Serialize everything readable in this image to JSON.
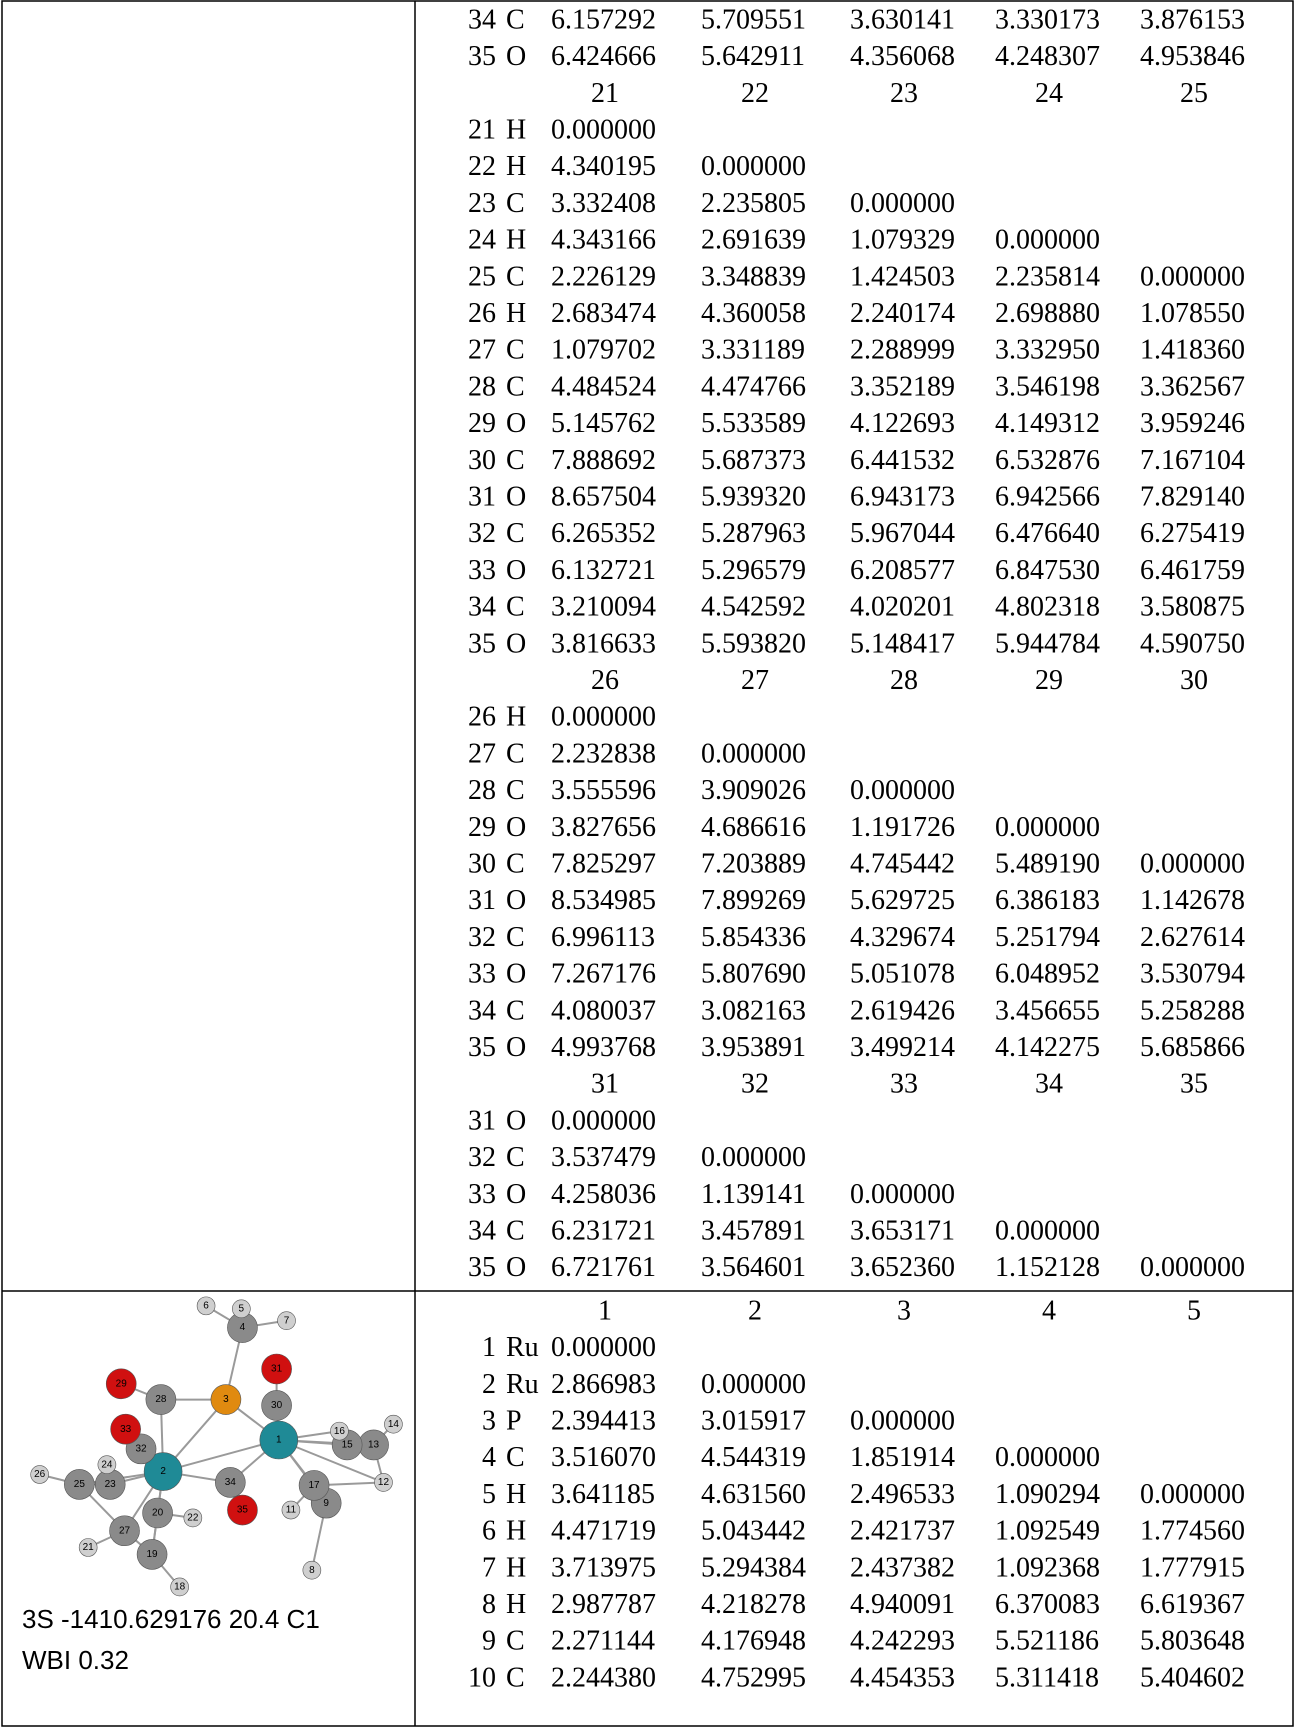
{
  "cells": [
    {
      "blocks": [
        {
          "rows": [
            [
              "34",
              "C",
              "6.157292",
              "5.709551",
              "3.630141",
              "3.330173",
              "3.876153"
            ],
            [
              "35",
              "O",
              "6.424666",
              "5.642911",
              "4.356068",
              "4.248307",
              "4.953846"
            ]
          ]
        },
        {
          "columns": [
            "21",
            "22",
            "23",
            "24",
            "25"
          ],
          "rows": [
            [
              "21",
              "H",
              "0.000000"
            ],
            [
              "22",
              "H",
              "4.340195",
              "0.000000"
            ],
            [
              "23",
              "C",
              "3.332408",
              "2.235805",
              "0.000000"
            ],
            [
              "24",
              "H",
              "4.343166",
              "2.691639",
              "1.079329",
              "0.000000"
            ],
            [
              "25",
              "C",
              "2.226129",
              "3.348839",
              "1.424503",
              "2.235814",
              "0.000000"
            ],
            [
              "26",
              "H",
              "2.683474",
              "4.360058",
              "2.240174",
              "2.698880",
              "1.078550"
            ],
            [
              "27",
              "C",
              "1.079702",
              "3.331189",
              "2.288999",
              "3.332950",
              "1.418360"
            ],
            [
              "28",
              "C",
              "4.484524",
              "4.474766",
              "3.352189",
              "3.546198",
              "3.362567"
            ],
            [
              "29",
              "O",
              "5.145762",
              "5.533589",
              "4.122693",
              "4.149312",
              "3.959246"
            ],
            [
              "30",
              "C",
              "7.888692",
              "5.687373",
              "6.441532",
              "6.532876",
              "7.167104"
            ],
            [
              "31",
              "O",
              "8.657504",
              "5.939320",
              "6.943173",
              "6.942566",
              "7.829140"
            ],
            [
              "32",
              "C",
              "6.265352",
              "5.287963",
              "5.967044",
              "6.476640",
              "6.275419"
            ],
            [
              "33",
              "O",
              "6.132721",
              "5.296579",
              "6.208577",
              "6.847530",
              "6.461759"
            ],
            [
              "34",
              "C",
              "3.210094",
              "4.542592",
              "4.020201",
              "4.802318",
              "3.580875"
            ],
            [
              "35",
              "O",
              "3.816633",
              "5.593820",
              "5.148417",
              "5.944784",
              "4.590750"
            ]
          ]
        },
        {
          "columns": [
            "26",
            "27",
            "28",
            "29",
            "30"
          ],
          "rows": [
            [
              "26",
              "H",
              "0.000000"
            ],
            [
              "27",
              "C",
              "2.232838",
              "0.000000"
            ],
            [
              "28",
              "C",
              "3.555596",
              "3.909026",
              "0.000000"
            ],
            [
              "29",
              "O",
              "3.827656",
              "4.686616",
              "1.191726",
              "0.000000"
            ],
            [
              "30",
              "C",
              "7.825297",
              "7.203889",
              "4.745442",
              "5.489190",
              "0.000000"
            ],
            [
              "31",
              "O",
              "8.534985",
              "7.899269",
              "5.629725",
              "6.386183",
              "1.142678"
            ],
            [
              "32",
              "C",
              "6.996113",
              "5.854336",
              "4.329674",
              "5.251794",
              "2.627614"
            ],
            [
              "33",
              "O",
              "7.267176",
              "5.807690",
              "5.051078",
              "6.048952",
              "3.530794"
            ],
            [
              "34",
              "C",
              "4.080037",
              "3.082163",
              "2.619426",
              "3.456655",
              "5.258288"
            ],
            [
              "35",
              "O",
              "4.993768",
              "3.953891",
              "3.499214",
              "4.142275",
              "5.685866"
            ]
          ]
        },
        {
          "columns": [
            "31",
            "32",
            "33",
            "34",
            "35"
          ],
          "rows": [
            [
              "31",
              "O",
              "0.000000"
            ],
            [
              "32",
              "C",
              "3.537479",
              "0.000000"
            ],
            [
              "33",
              "O",
              "4.258036",
              "1.139141",
              "0.000000"
            ],
            [
              "34",
              "C",
              "6.231721",
              "3.457891",
              "3.653171",
              "0.000000"
            ],
            [
              "35",
              "O",
              "6.721761",
              "3.564601",
              "3.652360",
              "1.152128",
              "0.000000"
            ]
          ]
        }
      ]
    },
    {
      "molecule_labels": [
        "1",
        "2",
        "3",
        "4",
        "5",
        "6",
        "7",
        "8",
        "9",
        "11",
        "12",
        "13",
        "14",
        "15",
        "16",
        "17",
        "18",
        "19",
        "20",
        "21",
        "22",
        "23",
        "24",
        "25",
        "26",
        "27",
        "28",
        "29",
        "30",
        "31",
        "32",
        "33",
        "34",
        "35"
      ],
      "caption": [
        "3S -1410.629176 20.4 C1",
        "WBI 0.32"
      ],
      "blocks": [
        {
          "columns": [
            "1",
            "2",
            "3",
            "4",
            "5"
          ],
          "rows": [
            [
              "1",
              "Ru",
              "0.000000"
            ],
            [
              "2",
              "Ru",
              "2.866983",
              "0.000000"
            ],
            [
              "3",
              "P",
              "2.394413",
              "3.015917",
              "0.000000"
            ],
            [
              "4",
              "C",
              "3.516070",
              "4.544319",
              "1.851914",
              "0.000000"
            ],
            [
              "5",
              "H",
              "3.641185",
              "4.631560",
              "2.496533",
              "1.090294",
              "0.000000"
            ],
            [
              "6",
              "H",
              "4.471719",
              "5.043442",
              "2.421737",
              "1.092549",
              "1.774560"
            ],
            [
              "7",
              "H",
              "3.713975",
              "5.294384",
              "2.437382",
              "1.092368",
              "1.777915"
            ],
            [
              "8",
              "H",
              "2.987787",
              "4.218278",
              "4.940091",
              "6.370083",
              "6.619367"
            ],
            [
              "9",
              "C",
              "2.271144",
              "4.176948",
              "4.242293",
              "5.521186",
              "5.803648"
            ],
            [
              "10",
              "C",
              "2.244380",
              "4.752995",
              "4.454353",
              "5.311418",
              "5.404602"
            ]
          ]
        }
      ]
    }
  ]
}
